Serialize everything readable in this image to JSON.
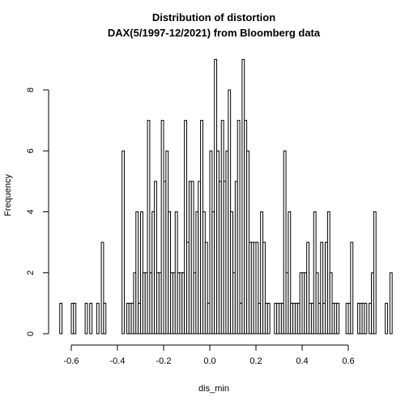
{
  "chart_data": {
    "type": "bar",
    "title": "Distribution of distortion",
    "subtitle": "DAX(5/1997-12/2021) from Bloomberg data",
    "xlabel": "dis_min",
    "ylabel": "Frequency",
    "xlim": [
      -0.65,
      0.7
    ],
    "ylim": [
      0,
      9
    ],
    "x_ticks": [
      -0.6,
      -0.4,
      -0.2,
      0.0,
      0.2,
      0.4,
      0.6
    ],
    "x_tick_labels": [
      "-0.6",
      "-0.4",
      "-0.2",
      "0.0",
      "0.2",
      "0.4",
      "0.6"
    ],
    "y_ticks": [
      0,
      2,
      4,
      6,
      8
    ],
    "y_tick_labels": [
      "0",
      "2",
      "4",
      "6",
      "8"
    ],
    "bin_width": 0.01,
    "bin_start": -0.65,
    "values": [
      1,
      0,
      0,
      0,
      0,
      1,
      1,
      0,
      0,
      0,
      0,
      1,
      0,
      1,
      0,
      0,
      1,
      0,
      3,
      1,
      0,
      0,
      0,
      0,
      0,
      0,
      0,
      6,
      0,
      1,
      1,
      1,
      2,
      4,
      1,
      4,
      2,
      2,
      7,
      2,
      4,
      5,
      2,
      2,
      7,
      5,
      6,
      4,
      2,
      2,
      4,
      2,
      2,
      2,
      7,
      3,
      5,
      5,
      2,
      4,
      5,
      7,
      4,
      3,
      1,
      6,
      4,
      9,
      6,
      5,
      7,
      5,
      6,
      8,
      4,
      2,
      5,
      7,
      1,
      9,
      7,
      6,
      3,
      3,
      3,
      3,
      1,
      4,
      3,
      1,
      1,
      0,
      0,
      1,
      1,
      1,
      1,
      6,
      2,
      4,
      1,
      1,
      1,
      1,
      2,
      2,
      2,
      3,
      1,
      1,
      4,
      2,
      1,
      3,
      1,
      3,
      4,
      2,
      1,
      1,
      1,
      0,
      0,
      0,
      1,
      1,
      3,
      0,
      0,
      1,
      1,
      1,
      1,
      0,
      1,
      2,
      4,
      0,
      0,
      0,
      0,
      1,
      0,
      2
    ],
    "grid": false,
    "legend": "none",
    "bar_fill": "#ffffff",
    "bar_stroke": "#000000"
  }
}
